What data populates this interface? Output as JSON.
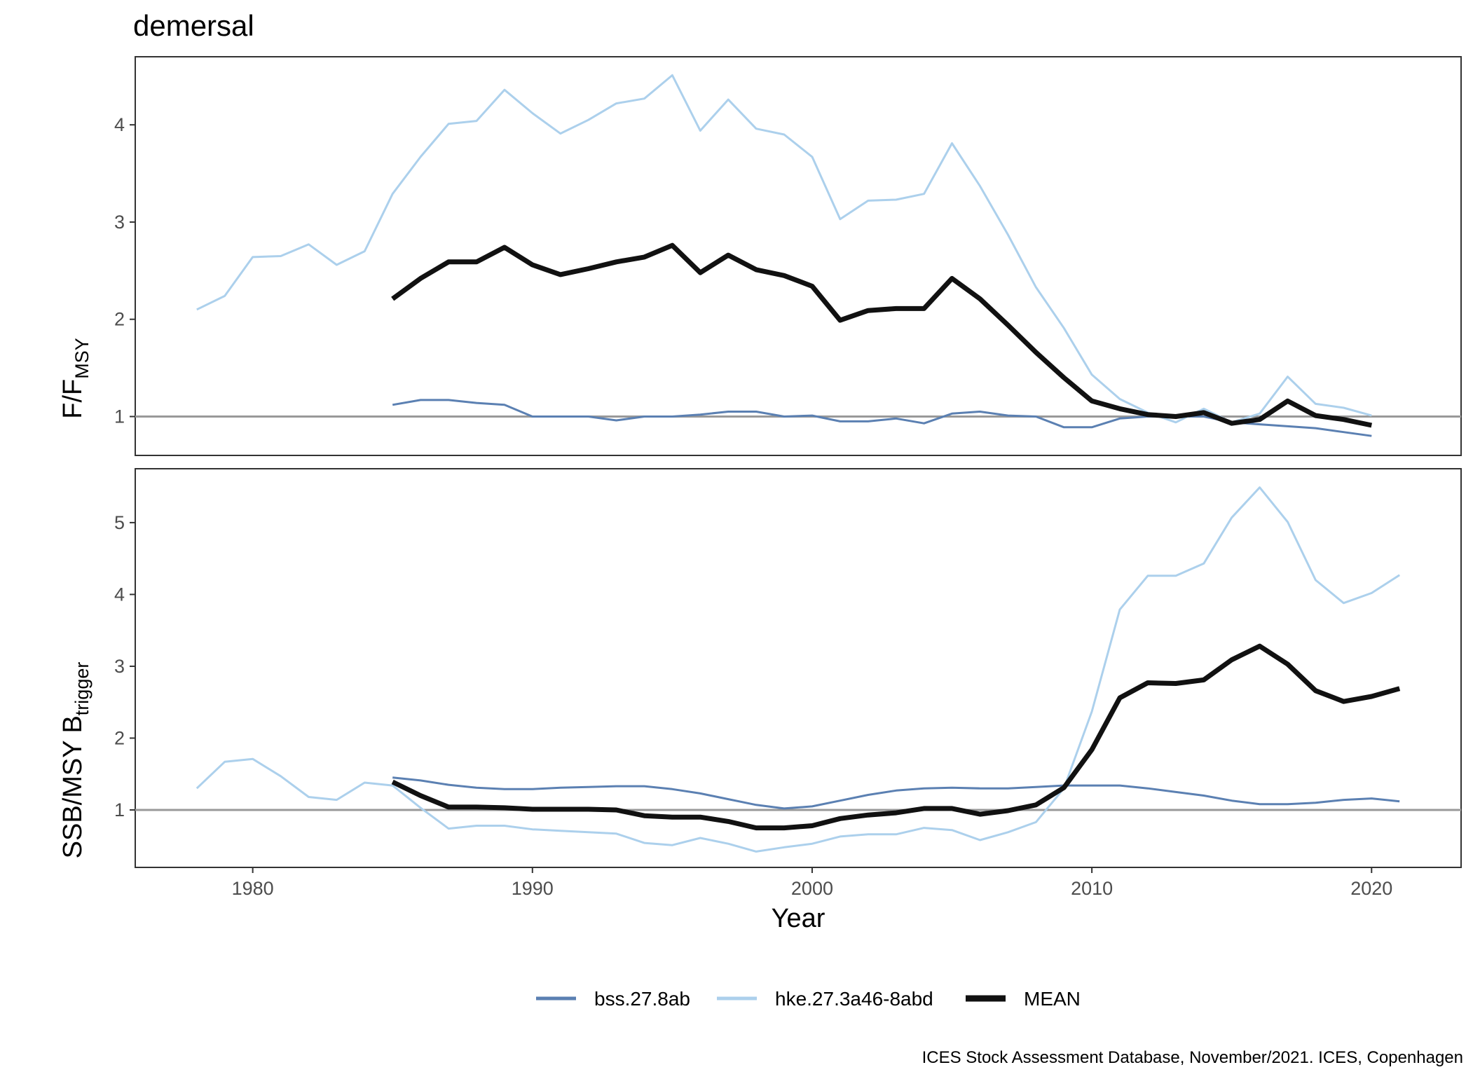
{
  "title": "demersal",
  "caption": "ICES Stock Assessment Database, November/2021. ICES, Copenhagen",
  "colors": {
    "bss.27.8ab": "#5b80b2",
    "hke.27.3a46-8abd": "#acd0ec",
    "MEAN": "#111111",
    "reference_line": "#999999",
    "panel_border": "#333333",
    "tick_text": "#4d4d4d"
  },
  "legend": {
    "items": [
      "bss.27.8ab",
      "hke.27.3a46-8abd",
      "MEAN"
    ],
    "placement": "bottom"
  },
  "chart_data": [
    {
      "type": "line",
      "panel": "top",
      "ylabel": "F/F",
      "ylabel_sub": "MSY",
      "xlabel": "",
      "xlim": [
        1975.8,
        2023.2
      ],
      "ylim": [
        0.6,
        4.7
      ],
      "yticks": [
        1,
        2,
        3,
        4
      ],
      "xticks": [],
      "reference_line": 1,
      "grid": false,
      "series": [
        {
          "name": "bss.27.8ab",
          "x": [
            1985,
            1986,
            1987,
            1988,
            1989,
            1990,
            1991,
            1992,
            1993,
            1994,
            1995,
            1996,
            1997,
            1998,
            1999,
            2000,
            2001,
            2002,
            2003,
            2004,
            2005,
            2006,
            2007,
            2008,
            2009,
            2010,
            2011,
            2012,
            2013,
            2014,
            2015,
            2016,
            2017,
            2018,
            2019,
            2020
          ],
          "values": [
            1.12,
            1.17,
            1.17,
            1.14,
            1.12,
            1.0,
            1.0,
            1.0,
            0.96,
            1.0,
            1.0,
            1.02,
            1.05,
            1.05,
            1.0,
            1.01,
            0.95,
            0.95,
            0.98,
            0.93,
            1.03,
            1.05,
            1.01,
            1.0,
            0.89,
            0.89,
            0.98,
            1.0,
            1.0,
            1.0,
            0.94,
            0.92,
            0.9,
            0.88,
            0.84,
            0.8
          ]
        },
        {
          "name": "hke.27.3a46-8abd",
          "x": [
            1978,
            1979,
            1980,
            1981,
            1982,
            1983,
            1984,
            1985,
            1986,
            1987,
            1988,
            1989,
            1990,
            1991,
            1992,
            1993,
            1994,
            1995,
            1996,
            1997,
            1998,
            1999,
            2000,
            2001,
            2002,
            2003,
            2004,
            2005,
            2006,
            2007,
            2008,
            2009,
            2010,
            2011,
            2012,
            2013,
            2014,
            2015,
            2016,
            2017,
            2018,
            2019,
            2020
          ],
          "values": [
            2.1,
            2.24,
            2.64,
            2.65,
            2.77,
            2.56,
            2.7,
            3.29,
            3.67,
            4.01,
            4.04,
            4.36,
            4.12,
            3.91,
            4.05,
            4.22,
            4.27,
            4.51,
            3.94,
            4.26,
            3.96,
            3.9,
            3.67,
            3.03,
            3.22,
            3.23,
            3.29,
            3.81,
            3.37,
            2.87,
            2.33,
            1.91,
            1.43,
            1.18,
            1.04,
            0.94,
            1.08,
            0.94,
            1.03,
            1.41,
            1.13,
            1.09,
            1.01
          ]
        },
        {
          "name": "MEAN",
          "x": [
            1985,
            1986,
            1987,
            1988,
            1989,
            1990,
            1991,
            1992,
            1993,
            1994,
            1995,
            1996,
            1997,
            1998,
            1999,
            2000,
            2001,
            2002,
            2003,
            2004,
            2005,
            2006,
            2007,
            2008,
            2009,
            2010,
            2011,
            2012,
            2013,
            2014,
            2015,
            2016,
            2017,
            2018,
            2019,
            2020
          ],
          "values": [
            2.21,
            2.42,
            2.59,
            2.59,
            2.74,
            2.56,
            2.46,
            2.52,
            2.59,
            2.64,
            2.76,
            2.48,
            2.66,
            2.51,
            2.45,
            2.34,
            1.99,
            2.09,
            2.11,
            2.11,
            2.42,
            2.21,
            1.94,
            1.66,
            1.4,
            1.16,
            1.08,
            1.02,
            1.0,
            1.04,
            0.93,
            0.97,
            1.16,
            1.01,
            0.97,
            0.91
          ]
        }
      ]
    },
    {
      "type": "line",
      "panel": "bottom",
      "ylabel": "SSB/MSY B",
      "ylabel_sub": "trigger",
      "xlabel": "Year",
      "xlim": [
        1975.8,
        2023.2
      ],
      "ylim": [
        0.2,
        5.75
      ],
      "yticks": [
        1,
        2,
        3,
        4,
        5
      ],
      "xticks": [
        1980,
        1990,
        2000,
        2010,
        2020
      ],
      "reference_line": 1,
      "grid": false,
      "series": [
        {
          "name": "bss.27.8ab",
          "x": [
            1985,
            1986,
            1987,
            1988,
            1989,
            1990,
            1991,
            1992,
            1993,
            1994,
            1995,
            1996,
            1997,
            1998,
            1999,
            2000,
            2001,
            2002,
            2003,
            2004,
            2005,
            2006,
            2007,
            2008,
            2009,
            2010,
            2011,
            2012,
            2013,
            2014,
            2015,
            2016,
            2017,
            2018,
            2019,
            2020,
            2021
          ],
          "values": [
            1.45,
            1.41,
            1.35,
            1.31,
            1.29,
            1.29,
            1.31,
            1.32,
            1.33,
            1.33,
            1.29,
            1.23,
            1.15,
            1.07,
            1.02,
            1.05,
            1.13,
            1.21,
            1.27,
            1.3,
            1.31,
            1.3,
            1.3,
            1.32,
            1.34,
            1.34,
            1.34,
            1.3,
            1.25,
            1.2,
            1.13,
            1.08,
            1.08,
            1.1,
            1.14,
            1.16,
            1.12
          ]
        },
        {
          "name": "hke.27.3a46-8abd",
          "x": [
            1978,
            1979,
            1980,
            1981,
            1982,
            1983,
            1984,
            1985,
            1986,
            1987,
            1988,
            1989,
            1990,
            1991,
            1992,
            1993,
            1994,
            1995,
            1996,
            1997,
            1998,
            1999,
            2000,
            2001,
            2002,
            2003,
            2004,
            2005,
            2006,
            2007,
            2008,
            2009,
            2010,
            2011,
            2012,
            2013,
            2014,
            2015,
            2016,
            2017,
            2018,
            2019,
            2020,
            2021
          ],
          "values": [
            1.3,
            1.67,
            1.71,
            1.47,
            1.18,
            1.14,
            1.38,
            1.34,
            1.03,
            0.74,
            0.78,
            0.78,
            0.73,
            0.71,
            0.69,
            0.67,
            0.54,
            0.51,
            0.61,
            0.53,
            0.42,
            0.48,
            0.53,
            0.63,
            0.66,
            0.66,
            0.75,
            0.72,
            0.58,
            0.69,
            0.83,
            1.3,
            2.37,
            3.79,
            4.26,
            4.26,
            4.43,
            5.07,
            5.49,
            5.01,
            4.2,
            3.88,
            4.02,
            4.27
          ]
        },
        {
          "name": "MEAN",
          "x": [
            1985,
            1986,
            1987,
            1988,
            1989,
            1990,
            1991,
            1992,
            1993,
            1994,
            1995,
            1996,
            1997,
            1998,
            1999,
            2000,
            2001,
            2002,
            2003,
            2004,
            2005,
            2006,
            2007,
            2008,
            2009,
            2010,
            2011,
            2012,
            2013,
            2014,
            2015,
            2016,
            2017,
            2018,
            2019,
            2020,
            2021
          ],
          "values": [
            1.39,
            1.2,
            1.04,
            1.04,
            1.03,
            1.01,
            1.01,
            1.01,
            1.0,
            0.92,
            0.9,
            0.9,
            0.84,
            0.75,
            0.75,
            0.78,
            0.88,
            0.93,
            0.96,
            1.02,
            1.02,
            0.94,
            0.99,
            1.07,
            1.31,
            1.84,
            2.56,
            2.77,
            2.76,
            2.81,
            3.09,
            3.28,
            3.03,
            2.66,
            2.51,
            2.58,
            2.69
          ]
        }
      ]
    }
  ]
}
